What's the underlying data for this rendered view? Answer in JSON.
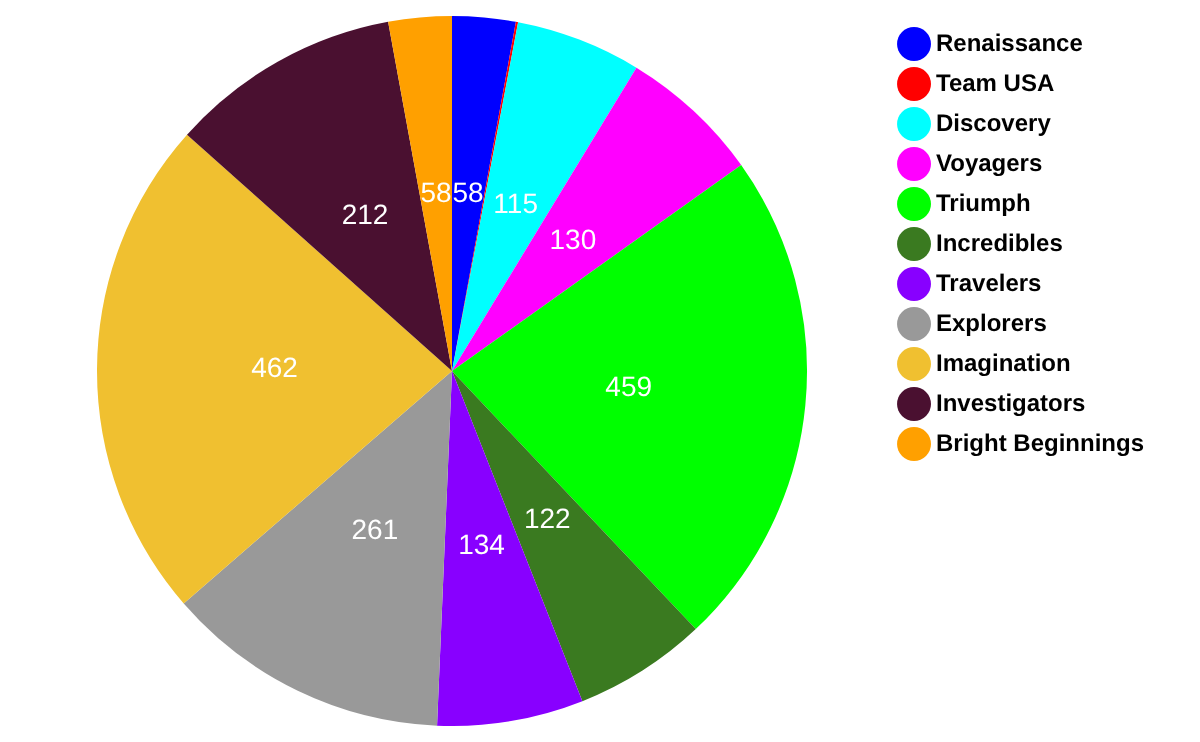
{
  "chart_data": {
    "type": "pie",
    "categories": [
      "Renaissance",
      "Team USA",
      "Discovery",
      "Voyagers",
      "Triumph",
      "Incredibles",
      "Travelers",
      "Explorers",
      "Imagination",
      "Investigators",
      "Bright Beginnings"
    ],
    "values": [
      58,
      2,
      115,
      130,
      459,
      122,
      134,
      261,
      462,
      212,
      58
    ],
    "value_labels": [
      "58",
      null,
      "115",
      "130",
      "459",
      "122",
      "134",
      "261",
      "462",
      "212",
      "58"
    ],
    "colors": [
      "#0000ff",
      "#ff0000",
      "#00ffff",
      "#ff00ff",
      "#00ff00",
      "#3a7a20",
      "#8800ff",
      "#999999",
      "#f0c030",
      "#4a1030",
      "#ffa000"
    ],
    "legend": "top right"
  }
}
